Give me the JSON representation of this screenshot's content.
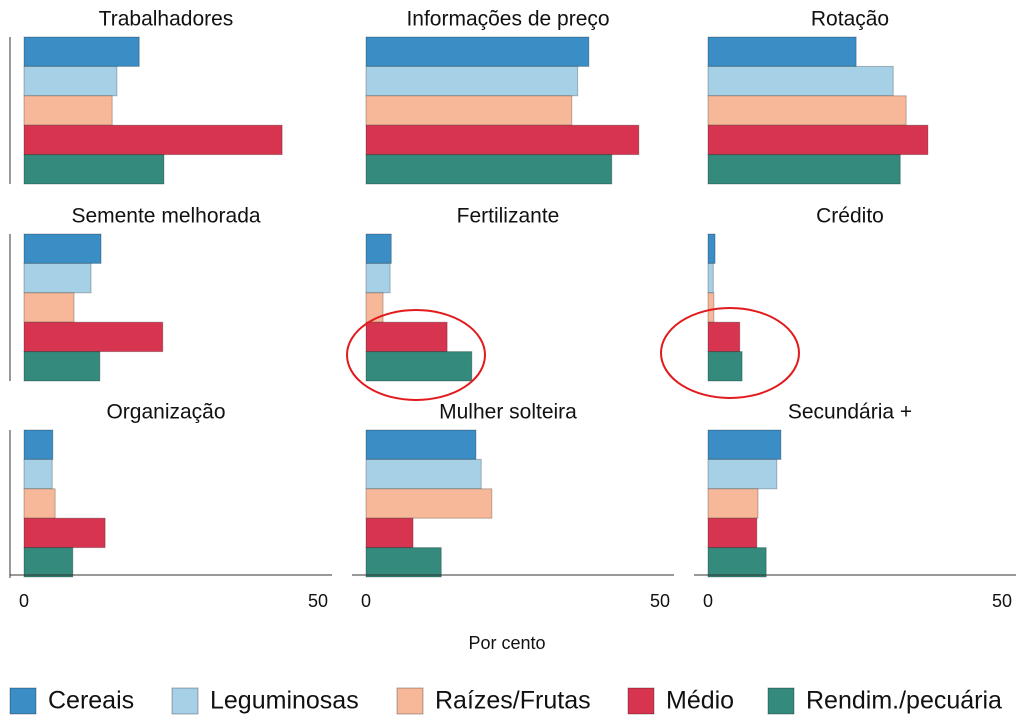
{
  "chart_data": {
    "type": "bar",
    "orientation": "horizontal",
    "categories": [
      "Trabalhadores",
      "Informações de preço",
      "Rotação",
      "Semente melhorada",
      "Fertilizante",
      "Crédito",
      "Organização",
      "Mulher solteira",
      "Secundária +"
    ],
    "series": [
      {
        "name": "Cereais",
        "color": "#3a8dc5",
        "values": [
          19.6,
          37.9,
          25.2,
          13.1,
          4.3,
          1.2,
          4.9,
          18.7,
          12.4
        ]
      },
      {
        "name": "Leguminosas",
        "color": "#a6d0e6",
        "values": [
          15.8,
          36.0,
          31.5,
          11.4,
          4.1,
          0.9,
          4.8,
          19.6,
          11.7
        ]
      },
      {
        "name": "Raízes/Frutas",
        "color": "#f7b89a",
        "values": [
          15.0,
          35.0,
          33.7,
          8.5,
          2.9,
          1.0,
          5.3,
          21.4,
          8.5
        ]
      },
      {
        "name": "Médio",
        "color": "#d7344f",
        "values": [
          43.9,
          46.4,
          37.4,
          23.6,
          13.8,
          5.4,
          13.8,
          8.0,
          8.3
        ]
      },
      {
        "name": "Rendim./pecuária",
        "color": "#348a7c",
        "values": [
          23.8,
          41.8,
          32.7,
          12.9,
          18.0,
          5.8,
          8.3,
          12.8,
          9.9
        ]
      }
    ],
    "xlim": [
      0,
      50
    ],
    "xticks": [
      0,
      50
    ],
    "xlabel": "Por cento",
    "legend": "bottom"
  }
}
